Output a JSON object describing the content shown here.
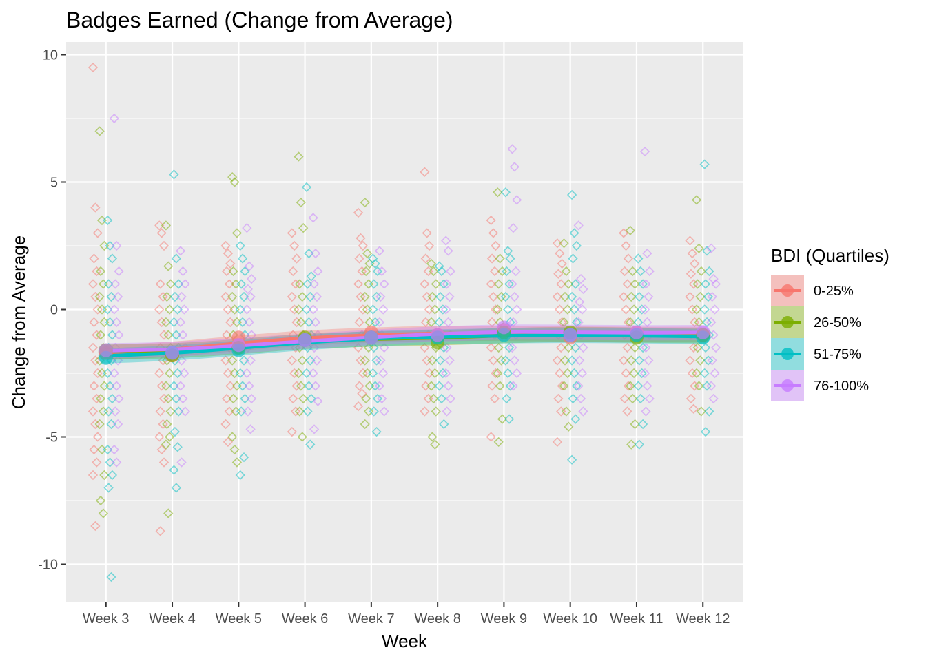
{
  "chart_data": {
    "type": "scatter",
    "title": "Badges Earned (Change from Average)",
    "xlabel": "Week",
    "ylabel": "Change from Average",
    "categories": [
      "Week 3",
      "Week 4",
      "Week 5",
      "Week 6",
      "Week 7",
      "Week 8",
      "Week 9",
      "Week 10",
      "Week 11",
      "Week 12"
    ],
    "ylim": [
      -11.5,
      10.5
    ],
    "yticks": [
      10,
      5,
      0,
      -5,
      -10
    ],
    "ytick_labels": [
      "10",
      "5",
      "0",
      "-5",
      "-10"
    ],
    "grid": true,
    "legend": {
      "title": "BDI (Quartiles)",
      "position": "right",
      "entries": [
        "0-25%",
        "26-50%",
        "51-75%",
        "76-100%"
      ]
    },
    "series": [
      {
        "name": "0-25%",
        "color": "#F8766D",
        "means": [
          -1.7,
          -1.8,
          -1.1,
          -1.2,
          -0.9,
          -1.0,
          -0.8,
          -1.1,
          -0.9,
          -1.0
        ],
        "points": [
          [
            9.5,
            4.0,
            3.0,
            2.0,
            1.5,
            1.0,
            0.5,
            0.0,
            -0.5,
            -1.0,
            -1.5,
            -2.0,
            -2.5,
            -3.0,
            -3.5,
            -4.0,
            -4.5,
            -5.0,
            -5.5,
            -6.0,
            -6.5,
            -8.5
          ],
          [
            3.3,
            3.0,
            2.5,
            1.0,
            0.5,
            0.0,
            -0.5,
            -1.0,
            -1.5,
            -2.0,
            -2.5,
            -3.0,
            -3.5,
            -4.0,
            -4.5,
            -5.0,
            -5.5,
            -6.0,
            -8.7
          ],
          [
            2.5,
            2.2,
            1.8,
            1.5,
            1.0,
            0.5,
            0.0,
            -0.5,
            -1.0,
            -1.5,
            -2.0,
            -2.5,
            -3.0,
            -3.5,
            -4.0,
            -4.5,
            -5.2
          ],
          [
            3.0,
            2.5,
            2.0,
            1.5,
            1.0,
            0.5,
            0.0,
            -0.5,
            -1.0,
            -1.5,
            -2.0,
            -2.5,
            -3.0,
            -3.5,
            -4.0,
            -4.8
          ],
          [
            3.8,
            2.8,
            2.5,
            2.0,
            1.5,
            1.0,
            0.5,
            0.0,
            -0.5,
            -1.0,
            -1.5,
            -2.0,
            -2.5,
            -3.0,
            -3.3,
            -3.8
          ],
          [
            5.4,
            3.0,
            2.5,
            2.0,
            1.5,
            1.0,
            0.5,
            0.0,
            -0.5,
            -1.0,
            -1.5,
            -2.0,
            -2.5,
            -3.0,
            -3.5,
            -4.0
          ],
          [
            3.5,
            3.0,
            2.5,
            2.0,
            1.5,
            1.0,
            0.5,
            0.0,
            -0.5,
            -1.0,
            -1.5,
            -2.0,
            -2.5,
            -3.0,
            -3.5,
            -5.0
          ],
          [
            2.6,
            2.2,
            1.8,
            1.4,
            1.0,
            0.5,
            0.0,
            -0.5,
            -1.0,
            -1.5,
            -2.0,
            -2.5,
            -3.0,
            -3.5,
            -4.0,
            -5.2
          ],
          [
            3.0,
            2.5,
            2.0,
            1.5,
            1.0,
            0.5,
            0.0,
            -0.5,
            -1.0,
            -1.5,
            -2.0,
            -2.5,
            -3.0,
            -3.5,
            -4.0
          ],
          [
            2.7,
            2.2,
            1.8,
            1.4,
            1.0,
            0.5,
            0.0,
            -0.5,
            -1.0,
            -1.5,
            -2.0,
            -2.5,
            -3.0,
            -3.5,
            -3.9
          ]
        ]
      },
      {
        "name": "26-50%",
        "color": "#7CAE00",
        "means": [
          -1.6,
          -1.8,
          -1.5,
          -1.1,
          -1.1,
          -1.3,
          -0.9,
          -0.9,
          -1.1,
          -1.0
        ],
        "points": [
          [
            7.0,
            3.5,
            2.5,
            1.5,
            1.0,
            0.5,
            0.0,
            -0.5,
            -1.0,
            -1.5,
            -2.0,
            -2.5,
            -3.0,
            -3.5,
            -4.0,
            -4.5,
            -5.5,
            -6.5,
            -7.5,
            -8.0
          ],
          [
            3.3,
            1.7,
            1.0,
            0.5,
            0.0,
            -0.5,
            -1.0,
            -1.5,
            -2.0,
            -2.5,
            -3.0,
            -3.5,
            -4.0,
            -4.5,
            -5.0,
            -5.3,
            -8.0
          ],
          [
            5.2,
            5.0,
            3.0,
            1.5,
            1.0,
            0.5,
            0.0,
            -0.5,
            -1.0,
            -1.5,
            -2.0,
            -2.5,
            -3.0,
            -3.5,
            -4.0,
            -5.0,
            -5.5,
            -6.0
          ],
          [
            6.0,
            4.2,
            3.2,
            1.0,
            0.5,
            0.0,
            -0.5,
            -1.0,
            -1.5,
            -2.0,
            -2.5,
            -3.0,
            -3.5,
            -4.0,
            -5.0
          ],
          [
            4.2,
            2.2,
            1.8,
            1.5,
            1.0,
            0.5,
            0.0,
            -0.5,
            -1.0,
            -1.5,
            -2.0,
            -2.5,
            -3.0,
            -3.5,
            -4.0,
            -4.5
          ],
          [
            1.8,
            1.5,
            1.0,
            0.5,
            0.0,
            -0.5,
            -1.0,
            -1.5,
            -2.0,
            -2.5,
            -3.0,
            -3.5,
            -4.0,
            -5.0,
            -5.3
          ],
          [
            4.6,
            2.0,
            1.5,
            1.0,
            0.5,
            0.0,
            -0.5,
            -1.0,
            -1.5,
            -2.0,
            -2.5,
            -3.0,
            -4.3,
            -5.2
          ],
          [
            2.6,
            1.5,
            1.0,
            0.5,
            0.0,
            -0.5,
            -1.0,
            -1.5,
            -2.0,
            -2.5,
            -3.0,
            -4.0,
            -4.6
          ],
          [
            3.1,
            1.5,
            1.0,
            0.5,
            0.0,
            -0.5,
            -1.0,
            -1.5,
            -2.0,
            -2.5,
            -3.0,
            -3.5,
            -4.5,
            -5.3
          ],
          [
            4.3,
            2.4,
            1.5,
            1.0,
            0.5,
            0.0,
            -0.5,
            -1.0,
            -1.5,
            -2.0,
            -2.5,
            -3.0,
            -4.0
          ]
        ]
      },
      {
        "name": "51-75%",
        "color": "#00BFC4",
        "means": [
          -1.9,
          -1.7,
          -1.6,
          -1.2,
          -1.1,
          -1.1,
          -1.0,
          -1.0,
          -1.0,
          -1.1
        ],
        "points": [
          [
            3.5,
            2.5,
            2.0,
            1.0,
            0.5,
            0.0,
            -0.5,
            -1.0,
            -1.5,
            -2.0,
            -2.5,
            -3.0,
            -3.5,
            -4.0,
            -4.5,
            -5.5,
            -6.0,
            -6.5,
            -7.0,
            -10.5
          ],
          [
            5.3,
            2.0,
            1.0,
            0.5,
            0.0,
            -0.5,
            -1.0,
            -1.5,
            -2.0,
            -2.5,
            -3.0,
            -3.5,
            -4.0,
            -4.8,
            -5.4,
            -6.3,
            -7.0
          ],
          [
            2.5,
            2.0,
            1.5,
            1.0,
            0.5,
            0.0,
            -0.5,
            -1.0,
            -1.5,
            -2.0,
            -2.5,
            -3.0,
            -3.5,
            -4.0,
            -5.8,
            -6.5
          ],
          [
            4.8,
            2.2,
            1.3,
            1.0,
            0.5,
            0.0,
            -0.5,
            -1.0,
            -1.5,
            -2.0,
            -2.5,
            -3.0,
            -3.5,
            -4.0,
            -5.3
          ],
          [
            2.0,
            1.8,
            1.5,
            1.0,
            0.5,
            0.0,
            -0.5,
            -1.0,
            -1.5,
            -2.0,
            -2.5,
            -3.0,
            -3.5,
            -4.0,
            -4.8
          ],
          [
            1.7,
            1.5,
            1.0,
            0.5,
            0.0,
            -0.5,
            -1.0,
            -1.5,
            -2.0,
            -2.5,
            -3.0,
            -3.5,
            -4.5
          ],
          [
            4.6,
            2.3,
            2.0,
            1.5,
            1.0,
            0.5,
            0.0,
            -0.5,
            -1.0,
            -1.5,
            -2.0,
            -2.5,
            -3.0,
            -3.5,
            -4.3
          ],
          [
            4.5,
            3.0,
            2.5,
            2.0,
            1.0,
            0.5,
            0.0,
            -0.5,
            -1.0,
            -1.5,
            -2.0,
            -2.5,
            -3.0,
            -3.5,
            -4.3,
            -5.9
          ],
          [
            2.0,
            1.5,
            1.0,
            0.5,
            0.0,
            -0.5,
            -1.0,
            -1.5,
            -2.0,
            -2.5,
            -3.0,
            -3.5,
            -4.5,
            -5.3
          ],
          [
            5.7,
            2.3,
            1.5,
            1.0,
            0.5,
            0.0,
            -0.5,
            -1.0,
            -1.5,
            -2.0,
            -2.5,
            -3.0,
            -4.0,
            -4.8
          ]
        ]
      },
      {
        "name": "76-100%",
        "color": "#C77CFF",
        "means": [
          -1.6,
          -1.7,
          -1.4,
          -1.2,
          -1.1,
          -1.0,
          -0.7,
          -1.0,
          -0.9,
          -0.9
        ],
        "points": [
          [
            7.5,
            2.5,
            1.5,
            1.0,
            0.5,
            0.0,
            -0.5,
            -1.0,
            -1.5,
            -2.0,
            -2.5,
            -3.0,
            -3.5,
            -4.0,
            -4.5,
            -5.5,
            -6.0
          ],
          [
            2.3,
            1.5,
            1.0,
            0.5,
            0.0,
            -0.5,
            -1.0,
            -1.5,
            -2.0,
            -2.5,
            -3.0,
            -3.5,
            -4.0,
            -6.0
          ],
          [
            3.2,
            1.7,
            1.2,
            0.8,
            0.5,
            0.0,
            -0.5,
            -1.0,
            -1.5,
            -2.0,
            -2.5,
            -3.0,
            -3.5,
            -4.0,
            -4.7
          ],
          [
            3.6,
            2.2,
            1.5,
            1.0,
            0.5,
            0.0,
            -0.5,
            -1.0,
            -1.5,
            -2.0,
            -2.5,
            -3.0,
            -3.6,
            -4.7
          ],
          [
            2.3,
            1.5,
            1.0,
            0.5,
            0.0,
            -0.5,
            -1.0,
            -1.5,
            -2.0,
            -2.5,
            -3.0,
            -3.5,
            -4.0
          ],
          [
            2.7,
            2.3,
            1.5,
            1.0,
            0.5,
            0.0,
            -0.5,
            -1.0,
            -1.5,
            -2.0,
            -2.5,
            -3.0,
            -3.5,
            -4.0
          ],
          [
            6.3,
            5.6,
            4.3,
            3.2,
            1.5,
            1.0,
            0.5,
            0.0,
            -0.5,
            -1.0,
            -1.5,
            -2.0,
            -2.5,
            -3.0
          ],
          [
            3.3,
            1.2,
            0.8,
            0.3,
            0.0,
            -0.5,
            -1.0,
            -1.5,
            -2.0,
            -2.5,
            -3.0,
            -3.5,
            -4.0
          ],
          [
            6.2,
            2.2,
            1.5,
            1.0,
            0.5,
            0.0,
            -0.5,
            -1.0,
            -1.5,
            -2.0,
            -2.5,
            -3.0,
            -3.5,
            -4.0
          ],
          [
            2.4,
            1.2,
            1.0,
            0.5,
            0.0,
            -0.5,
            -1.0,
            -1.5,
            -2.0,
            -2.5,
            -3.0,
            -3.5
          ]
        ]
      }
    ]
  }
}
